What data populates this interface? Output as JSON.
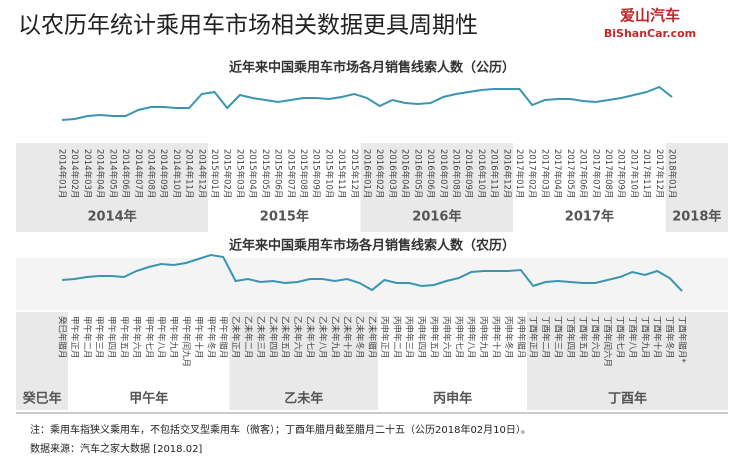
{
  "header": {
    "title": "以农历年统计乘用车市场相关数据更具周期性",
    "logo_cn": "爱山汽车",
    "logo_en": "BiShanCar.com"
  },
  "chart_data": [
    {
      "type": "line",
      "title": "近年来中国乘用车市场各月销售线索人数（公历）",
      "color": "#3a95b0",
      "categories": [
        "2014年01月",
        "2014年02月",
        "2014年03月",
        "2014年04月",
        "2014年05月",
        "2014年06月",
        "2014年07月",
        "2014年08月",
        "2014年09月",
        "2014年10月",
        "2014年11月",
        "2014年12月",
        "2015年01月",
        "2015年02月",
        "2015年03月",
        "2015年04月",
        "2015年05月",
        "2015年06月",
        "2015年07月",
        "2015年08月",
        "2015年09月",
        "2015年10月",
        "2015年11月",
        "2015年12月",
        "2016年01月",
        "2016年02月",
        "2016年03月",
        "2016年04月",
        "2016年05月",
        "2016年06月",
        "2016年07月",
        "2016年08月",
        "2016年09月",
        "2016年10月",
        "2016年11月",
        "2016年12月",
        "2017年01月",
        "2017年02月",
        "2017年03月",
        "2017年04月",
        "2017年05月",
        "2017年06月",
        "2017年07月",
        "2017年08月",
        "2017年09月",
        "2017年10月",
        "2017年11月",
        "2017年12月",
        "2018年01月"
      ],
      "values": [
        10,
        11,
        14,
        15,
        14,
        14,
        20,
        23,
        23,
        22,
        22,
        36,
        38,
        22,
        35,
        32,
        30,
        28,
        30,
        32,
        32,
        31,
        33,
        36,
        32,
        24,
        30,
        27,
        26,
        27,
        33,
        36,
        38,
        40,
        41,
        41,
        41,
        25,
        30,
        31,
        31,
        29,
        28,
        30,
        32,
        35,
        38,
        43,
        33
      ],
      "groups": [
        "2014年",
        "2015年",
        "2016年",
        "2017年",
        "2018年"
      ],
      "ylim": [
        0,
        50
      ]
    },
    {
      "type": "line",
      "title": "近年来中国乘用车市场各月销售线索人数（农历）",
      "color": "#3a95b0",
      "categories": [
        "癸巳年腊月",
        "甲午年正月",
        "甲午年二月",
        "甲午年三月",
        "甲午年四月",
        "甲午年五月",
        "甲午年六月",
        "甲午年七月",
        "甲午年八月",
        "甲午年九月",
        "甲午年闰九月",
        "甲午年十月",
        "甲午年冬月",
        "甲午年腊月",
        "乙未年正月",
        "乙未年二月",
        "乙未年三月",
        "乙未年四月",
        "乙未年五月",
        "乙未年六月",
        "乙未年七月",
        "乙未年八月",
        "乙未年九月",
        "乙未年十月",
        "乙未年冬月",
        "乙未年腊月",
        "丙申年正月",
        "丙申年二月",
        "丙申年三月",
        "丙申年四月",
        "丙申年五月",
        "丙申年六月",
        "丙申年七月",
        "丙申年八月",
        "丙申年九月",
        "丙申年十月",
        "丙申年冬月",
        "丙申年腊月",
        "丁酉年正月",
        "丁酉年二月",
        "丁酉年三月",
        "丁酉年四月",
        "丁酉年五月",
        "丁酉年六月",
        "丁酉年闰六月",
        "丁酉年七月",
        "丁酉年八月",
        "丁酉年九月",
        "丁酉年十月",
        "丁酉年冬月",
        "丁酉年腊月*"
      ],
      "values": [
        30,
        31,
        33,
        34,
        34,
        33,
        39,
        43,
        46,
        45,
        47,
        51,
        55,
        53,
        29,
        31,
        28,
        29,
        27,
        28,
        31,
        31,
        29,
        31,
        27,
        20,
        30,
        27,
        27,
        24,
        25,
        29,
        32,
        38,
        39,
        39,
        39,
        40,
        24,
        28,
        29,
        28,
        27,
        27,
        30,
        33,
        38,
        35,
        39,
        32,
        19
      ],
      "groups": [
        "癸巳年",
        "甲午年",
        "乙未年",
        "丙申年",
        "丁酉年"
      ],
      "ylim": [
        0,
        60
      ]
    }
  ],
  "notes": [
    "注：乘用车指狭义乘用车，不包括交叉型乘用车（微客）；丁酉年腊月截至腊月二十五（公历2018年02月10日）。",
    "数据来源：汽车之家大数据 [2018.02]"
  ]
}
